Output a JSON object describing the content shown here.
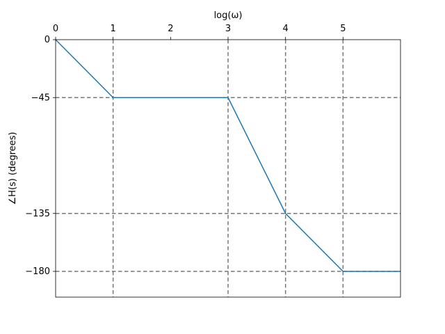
{
  "chart_data": {
    "type": "line",
    "x_label": "log(ω)",
    "y_label": "∠H(s) (degrees)",
    "x": [
      0,
      1,
      3,
      4,
      5,
      6
    ],
    "series": [
      {
        "color": "#1f77b4",
        "values": [
          0,
          -45,
          -45,
          -135,
          -180,
          -180
        ]
      }
    ],
    "xlim": [
      0,
      6
    ],
    "ylim": [
      -200,
      0
    ],
    "xticks": [
      0,
      1,
      2,
      3,
      4,
      5
    ],
    "yticks": [
      0,
      {
        "value": -45,
        "label": "−45"
      },
      {
        "value": -135,
        "label": "−135"
      },
      {
        "value": -180,
        "label": "−180"
      }
    ],
    "vlines": [
      1,
      3,
      4,
      5
    ],
    "hlines": [
      -45,
      -135,
      -180
    ],
    "x_axis_position": "top"
  }
}
